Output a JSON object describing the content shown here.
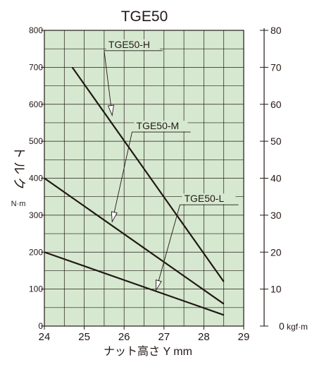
{
  "chart_data": {
    "type": "line",
    "title": "TGE50",
    "xlabel": "ナット高さ Y mm",
    "ylabel_chars": [
      "ト",
      "ル",
      "ク"
    ],
    "ylabel_unit": "N·m",
    "y2_unit": "kgf·m",
    "xlim": [
      24,
      29
    ],
    "ylim": [
      0,
      800
    ],
    "y2lim": [
      0,
      80
    ],
    "x_ticks": [
      "24",
      "25",
      "26",
      "27",
      "28",
      "29"
    ],
    "y_ticks": [
      "0",
      "100",
      "200",
      "300",
      "400",
      "500",
      "600",
      "700",
      "800"
    ],
    "y2_ticks": [
      "0",
      "10",
      "20",
      "30",
      "40",
      "50",
      "60",
      "70",
      "80"
    ],
    "grid": true,
    "background_color": "#d6e9d0",
    "line_color": "#231815",
    "series": [
      {
        "name": "TGE50-H",
        "x": [
          24.7,
          28.5
        ],
        "y": [
          700,
          120
        ],
        "label_at": [
          25.7,
          570
        ],
        "label_anchor": [
          25.5,
          745
        ]
      },
      {
        "name": "TGE50-M",
        "x": [
          24.0,
          28.5
        ],
        "y": [
          400,
          60
        ],
        "label_at": [
          25.7,
          282
        ],
        "label_anchor": [
          26.2,
          525
        ]
      },
      {
        "name": "TGE50-L",
        "x": [
          24.0,
          28.5
        ],
        "y": [
          200,
          30
        ],
        "label_at": [
          26.8,
          97
        ],
        "label_anchor": [
          27.4,
          328
        ]
      }
    ]
  }
}
